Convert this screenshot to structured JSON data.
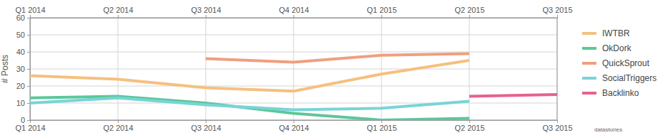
{
  "chart_data": {
    "type": "line",
    "y_label": "# Posts",
    "categories": [
      "Q1 2014",
      "Q2 2014",
      "Q3 2014",
      "Q4 2014",
      "Q1 2015",
      "Q2 2015",
      "Q3 2015"
    ],
    "series": [
      {
        "name": "IWTBR",
        "color": "#f5c07f",
        "values": [
          26,
          24,
          19,
          17,
          27,
          35,
          null
        ]
      },
      {
        "name": "OkDork",
        "color": "#5cc79b",
        "values": [
          13,
          14,
          10,
          4,
          0,
          1,
          null
        ]
      },
      {
        "name": "QuickSprout",
        "color": "#ef9f80",
        "values": [
          null,
          null,
          36,
          34,
          38,
          39,
          null
        ]
      },
      {
        "name": "SocialTriggers",
        "color": "#79d4d6",
        "values": [
          10,
          13,
          9,
          6,
          7,
          11,
          null
        ]
      },
      {
        "name": "Backlinko",
        "color": "#e6618e",
        "values": [
          null,
          null,
          null,
          null,
          null,
          14,
          15
        ]
      }
    ],
    "ylim": [
      0,
      60
    ],
    "yticks": [
      0,
      10,
      20,
      30,
      40,
      50,
      60
    ],
    "grid": true,
    "legend": "right",
    "annotations": [
      "datastories"
    ]
  }
}
